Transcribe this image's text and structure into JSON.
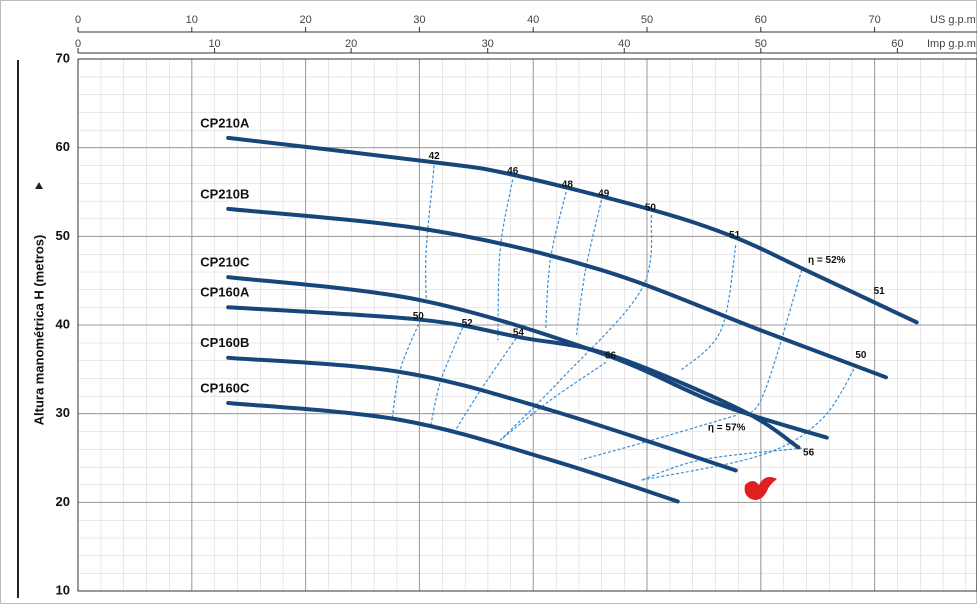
{
  "chart_data": {
    "type": "line",
    "y_label": "Altura manométrica H (metros)",
    "x_label": "US g.p.m",
    "x2_label": "Imp g.p.m",
    "xlim": [
      0,
      79
    ],
    "xticks": [
      0,
      10,
      20,
      30,
      40,
      50,
      60,
      70
    ],
    "x2lim": [
      0,
      65.83
    ],
    "x2ticks": [
      0,
      10,
      20,
      30,
      40,
      50,
      60
    ],
    "ylim": [
      10,
      70
    ],
    "yticks": [
      10,
      20,
      30,
      40,
      50,
      60,
      70
    ],
    "grid": true,
    "series": [
      {
        "name": "CP210A",
        "color": "#17467a",
        "x": [
          13.2,
          31,
          38,
          50.4,
          57.7,
          63.6,
          73.7
        ],
        "values": [
          61.1,
          58.4,
          57.0,
          53.0,
          49.9,
          46.4,
          40.3
        ]
      },
      {
        "name": "CP210B",
        "color": "#17467a",
        "x": [
          13.2,
          31,
          46,
          60,
          71
        ],
        "values": [
          53.1,
          50.7,
          46.2,
          39.4,
          34.1
        ]
      },
      {
        "name": "CP210C",
        "color": "#17467a",
        "x": [
          13.2,
          30.1,
          46,
          56.5,
          65.8
        ],
        "values": [
          45.4,
          42.8,
          36.8,
          31.0,
          27.3
        ]
      },
      {
        "name": "CP160A",
        "color": "#17467a",
        "x": [
          13.2,
          30.1,
          38.9,
          46.8,
          58.3,
          63.3
        ],
        "values": [
          42.0,
          40.6,
          38.6,
          36.6,
          30.4,
          26.2
        ]
      },
      {
        "name": "CP160B",
        "color": "#17467a",
        "x": [
          13.2,
          28.3,
          41.5,
          57.8
        ],
        "values": [
          36.3,
          34.7,
          30.4,
          23.6
        ]
      },
      {
        "name": "CP160C",
        "color": "#17467a",
        "x": [
          13.2,
          28.3,
          41.5,
          52.7
        ],
        "values": [
          31.2,
          29.3,
          24.8,
          20.1
        ]
      }
    ],
    "efficiency_color": "#3a8fd6",
    "efficiency_curves": [
      {
        "x": [
          31.3,
          30.6,
          30.6
        ],
        "values": [
          58.0,
          48.5,
          42.8
        ]
      },
      {
        "x": [
          38.2,
          37.1,
          36.9
        ],
        "values": [
          56.4,
          48.5,
          38.3
        ]
      },
      {
        "x": [
          42.9,
          41.5,
          41.1
        ],
        "values": [
          55.0,
          47.3,
          39.4
        ]
      },
      {
        "x": [
          46,
          44.6,
          43.8
        ],
        "values": [
          54.1,
          46.2,
          38.9
        ]
      },
      {
        "x": [
          50.4,
          49.5,
          42.4,
          37.1
        ],
        "values": [
          52.4,
          44.0,
          33.8,
          27.0
        ]
      },
      {
        "x": [
          57.8,
          56.5,
          53
        ],
        "values": [
          49.0,
          39.4,
          34.9
        ]
      },
      {
        "x": [
          63.6,
          60.0,
          57.5
        ],
        "values": [
          46.2,
          31.5,
          30.3
        ]
      },
      {
        "x": [
          68.4,
          65.3,
          60.0,
          49.5
        ],
        "values": [
          35.5,
          29.3,
          25.3,
          22.5
        ]
      },
      {
        "x": [
          30.1,
          28.3,
          27.6
        ],
        "values": [
          40.6,
          34.9,
          29.3
        ]
      },
      {
        "x": [
          33.8,
          31.9,
          31
        ],
        "values": [
          39.7,
          33.8,
          28.7
        ]
      },
      {
        "x": [
          38.5,
          35.4,
          33.2
        ],
        "values": [
          38.5,
          32.7,
          28.2
        ]
      },
      {
        "x": [
          46.4,
          41.5,
          37.1
        ],
        "values": [
          35.8,
          31.5,
          27.0
        ]
      },
      {
        "x": [
          57.8,
          50.4,
          44.2
        ],
        "values": [
          29.8,
          27.0,
          24.8
        ]
      },
      {
        "x": [
          63.6,
          54.8,
          49.5
        ],
        "values": [
          26.1,
          24.8,
          22.5
        ]
      }
    ],
    "efficiency_labels": [
      {
        "text": "42",
        "x": 31.3,
        "y": 59.0
      },
      {
        "text": "46",
        "x": 38.2,
        "y": 57.3
      },
      {
        "text": "48",
        "x": 43.0,
        "y": 55.8
      },
      {
        "text": "49",
        "x": 46.2,
        "y": 54.8
      },
      {
        "text": "50",
        "x": 50.3,
        "y": 53.2
      },
      {
        "text": "51",
        "x": 57.7,
        "y": 50.1
      },
      {
        "text": "η = 52%",
        "x": 65.8,
        "y": 47.3
      },
      {
        "text": "51",
        "x": 70.4,
        "y": 43.8
      },
      {
        "text": "50",
        "x": 68.8,
        "y": 36.6
      },
      {
        "text": "50",
        "x": 29.9,
        "y": 41.0
      },
      {
        "text": "52",
        "x": 34.2,
        "y": 40.2
      },
      {
        "text": "54",
        "x": 38.7,
        "y": 39.1
      },
      {
        "text": "56",
        "x": 46.8,
        "y": 36.5
      },
      {
        "text": "η = 57%",
        "x": 57.0,
        "y": 28.4
      },
      {
        "text": "56",
        "x": 64.2,
        "y": 25.6
      }
    ]
  }
}
